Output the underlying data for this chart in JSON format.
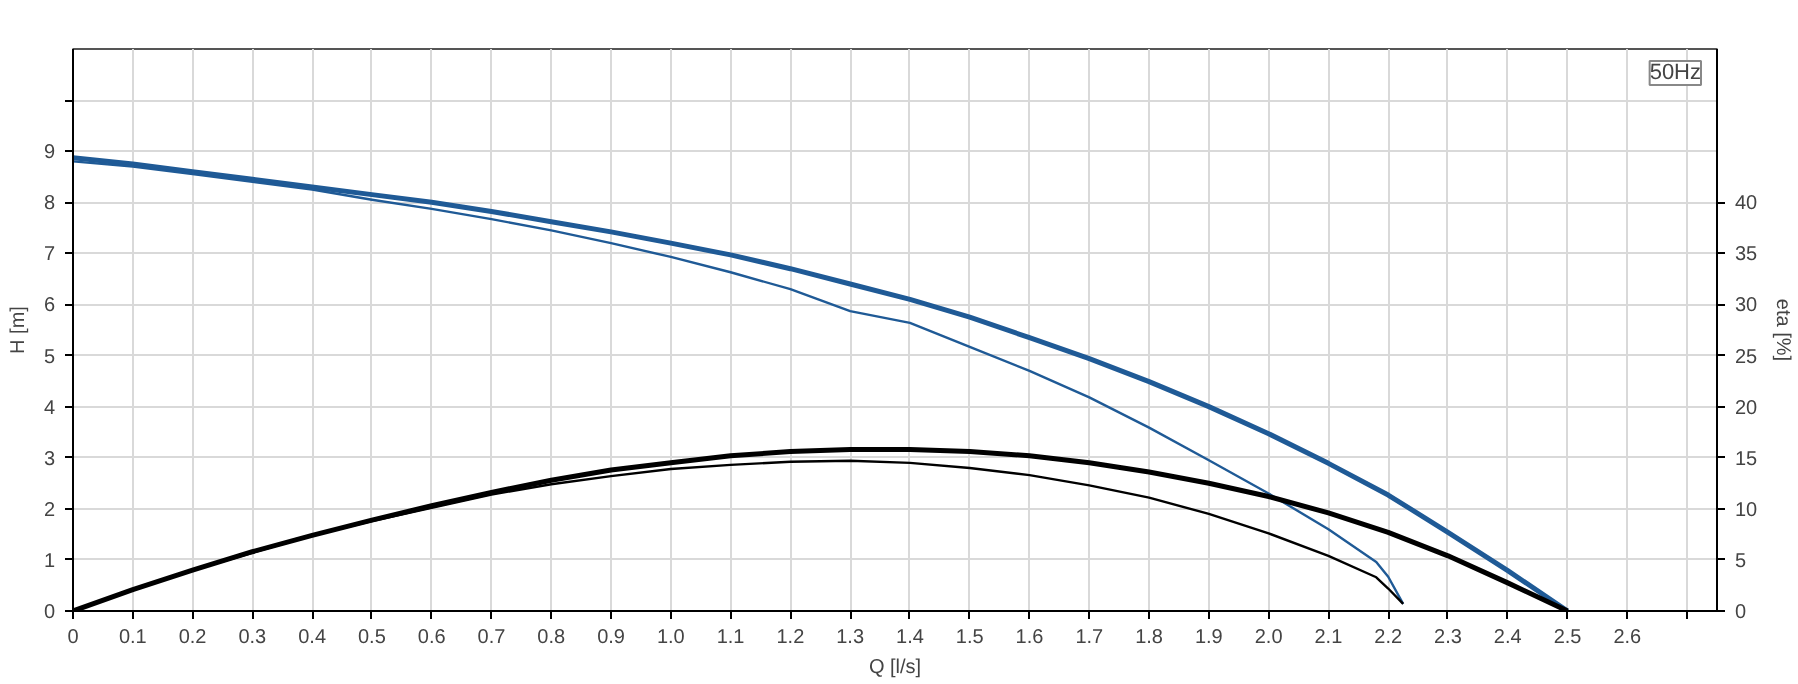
{
  "chart_data": {
    "type": "line",
    "xlabel": "Q [l/s]",
    "ylabel": "H [m]",
    "y2label": "eta [%]",
    "annotations": [
      "50Hz"
    ],
    "xlim": [
      0,
      2.75
    ],
    "ylim": [
      0,
      11
    ],
    "y2lim": [
      0,
      55
    ],
    "xticks": [
      0,
      0.1,
      0.2,
      0.3,
      0.4,
      0.5,
      0.6,
      0.7,
      0.8,
      0.9,
      {
        "value": 1,
        "label": "1.0"
      },
      1.1,
      1.2,
      1.3,
      1.4,
      1.5,
      1.6,
      1.7,
      1.8,
      1.9,
      {
        "value": 2,
        "label": "2.0"
      },
      2.1,
      2.2,
      2.3,
      2.4,
      2.5,
      2.6,
      {
        "value": 2.7,
        "label": null
      }
    ],
    "yticks": [
      0,
      1,
      2,
      3,
      4,
      5,
      6,
      7,
      8,
      9,
      {
        "value": 10,
        "label": null
      }
    ],
    "y2ticks": [
      0,
      5,
      10,
      15,
      20,
      25,
      30,
      35,
      40
    ],
    "grid": true,
    "marker": "none",
    "line_style": "solid",
    "series": [
      {
        "color": "#1f5a96",
        "x": [
          0,
          0.1,
          0.2,
          0.3,
          0.4,
          0.5,
          0.6,
          0.7,
          0.8,
          0.9,
          1.0,
          1.1,
          1.2,
          1.3,
          1.4,
          1.5,
          1.6,
          1.7,
          1.8,
          1.9,
          2.0,
          2.1,
          2.2,
          2.3,
          2.4,
          2.5
        ],
        "values": [
          8.87,
          8.75,
          8.6,
          8.45,
          8.3,
          8.15,
          8.0,
          7.82,
          7.62,
          7.42,
          7.2,
          6.97,
          6.7,
          6.4,
          6.1,
          5.75,
          5.35,
          4.94,
          4.49,
          4.0,
          3.47,
          2.89,
          2.27,
          1.54,
          0.79,
          0
        ]
      },
      {
        "color": "#1f5a96",
        "x": [
          0,
          0.1,
          0.2,
          0.3,
          0.4,
          0.5,
          0.6,
          0.7,
          0.8,
          0.9,
          1.0,
          1.1,
          1.2,
          1.3,
          1.4,
          1.5,
          1.6,
          1.7,
          1.8,
          1.9,
          2.0,
          2.1,
          2.18,
          2.2,
          2.225
        ],
        "values": [
          8.8,
          8.7,
          8.55,
          8.4,
          8.25,
          8.05,
          7.87,
          7.67,
          7.45,
          7.2,
          6.93,
          6.63,
          6.3,
          5.87,
          5.64,
          5.17,
          4.7,
          4.18,
          3.59,
          2.95,
          2.3,
          1.6,
          0.96,
          0.67,
          0.14
        ]
      },
      {
        "color": "#000000",
        "axis": "y2",
        "x": [
          0,
          0.1,
          0.2,
          0.3,
          0.4,
          0.5,
          0.6,
          0.7,
          0.8,
          0.9,
          1.0,
          1.1,
          1.2,
          1.3,
          1.4,
          1.5,
          1.6,
          1.7,
          1.8,
          1.9,
          2.0,
          2.1,
          2.2,
          2.3,
          2.4,
          2.5
        ],
        "values": [
          0,
          2.1,
          4,
          5.8,
          7.4,
          8.9,
          10.3,
          11.6,
          12.8,
          13.8,
          14.5,
          15.2,
          15.6,
          15.8,
          15.8,
          15.6,
          15.2,
          14.5,
          13.6,
          12.5,
          11.2,
          9.6,
          7.7,
          5.4,
          2.75,
          0
        ]
      },
      {
        "color": "#000000",
        "axis": "y2",
        "x": [
          0,
          0.1,
          0.2,
          0.3,
          0.4,
          0.5,
          0.6,
          0.7,
          0.8,
          0.9,
          1.0,
          1.1,
          1.2,
          1.3,
          1.4,
          1.5,
          1.6,
          1.7,
          1.8,
          1.9,
          2.0,
          2.1,
          2.18,
          2.2,
          2.225
        ],
        "values": [
          0,
          2.1,
          4,
          5.7,
          7.4,
          8.8,
          10.1,
          11.4,
          12.4,
          13.2,
          13.9,
          14.3,
          14.6,
          14.7,
          14.5,
          14.0,
          13.3,
          12.3,
          11.1,
          9.5,
          7.6,
          5.4,
          3.3,
          2.2,
          0.7
        ]
      }
    ]
  }
}
